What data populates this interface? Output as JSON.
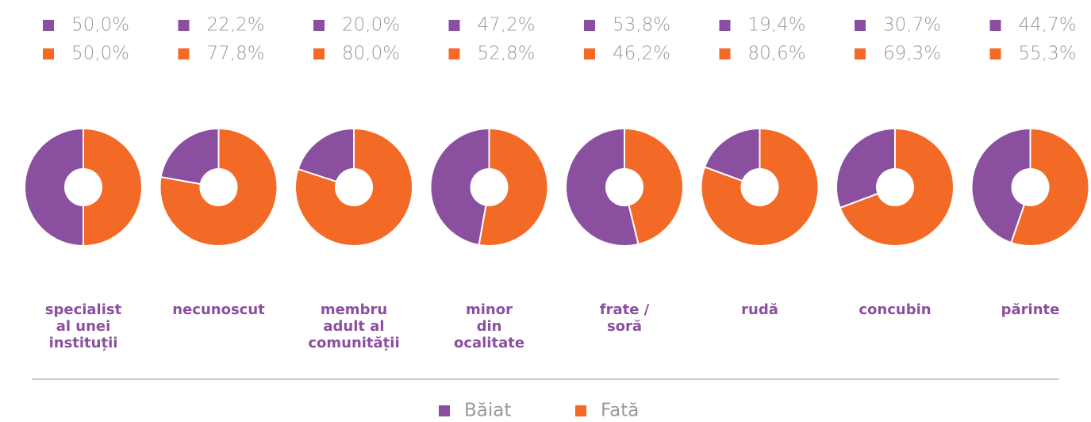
{
  "chart_data": {
    "type": "donut",
    "categories": [
      "specialist\nal unei\ninstituții",
      "necunoscut",
      "membru\nadult al\ncomunității",
      "minor\ndin\nocalitate",
      "frate /\nsoră",
      "rudă",
      "concubin",
      "părinte"
    ],
    "series": [
      {
        "name": "Băiat",
        "color": "#8b4f9f",
        "values": [
          50.0,
          22.2,
          20.0,
          47.2,
          53.8,
          19.4,
          30.7,
          44.7
        ],
        "value_labels": [
          "50,0%",
          "22,2%",
          "20,0%",
          "47,2%",
          "53,8%",
          "19,4%",
          "30,7%",
          "44,7%"
        ]
      },
      {
        "name": "Fată",
        "color": "#f26a25",
        "values": [
          50.0,
          77.8,
          80.0,
          52.8,
          46.2,
          80.6,
          69.3,
          55.3
        ],
        "value_labels": [
          "50,0%",
          "77,8%",
          "80,0%",
          "52,8%",
          "46,2%",
          "80,6%",
          "69,3%",
          "55,3%"
        ]
      }
    ],
    "legend": "bottom"
  }
}
